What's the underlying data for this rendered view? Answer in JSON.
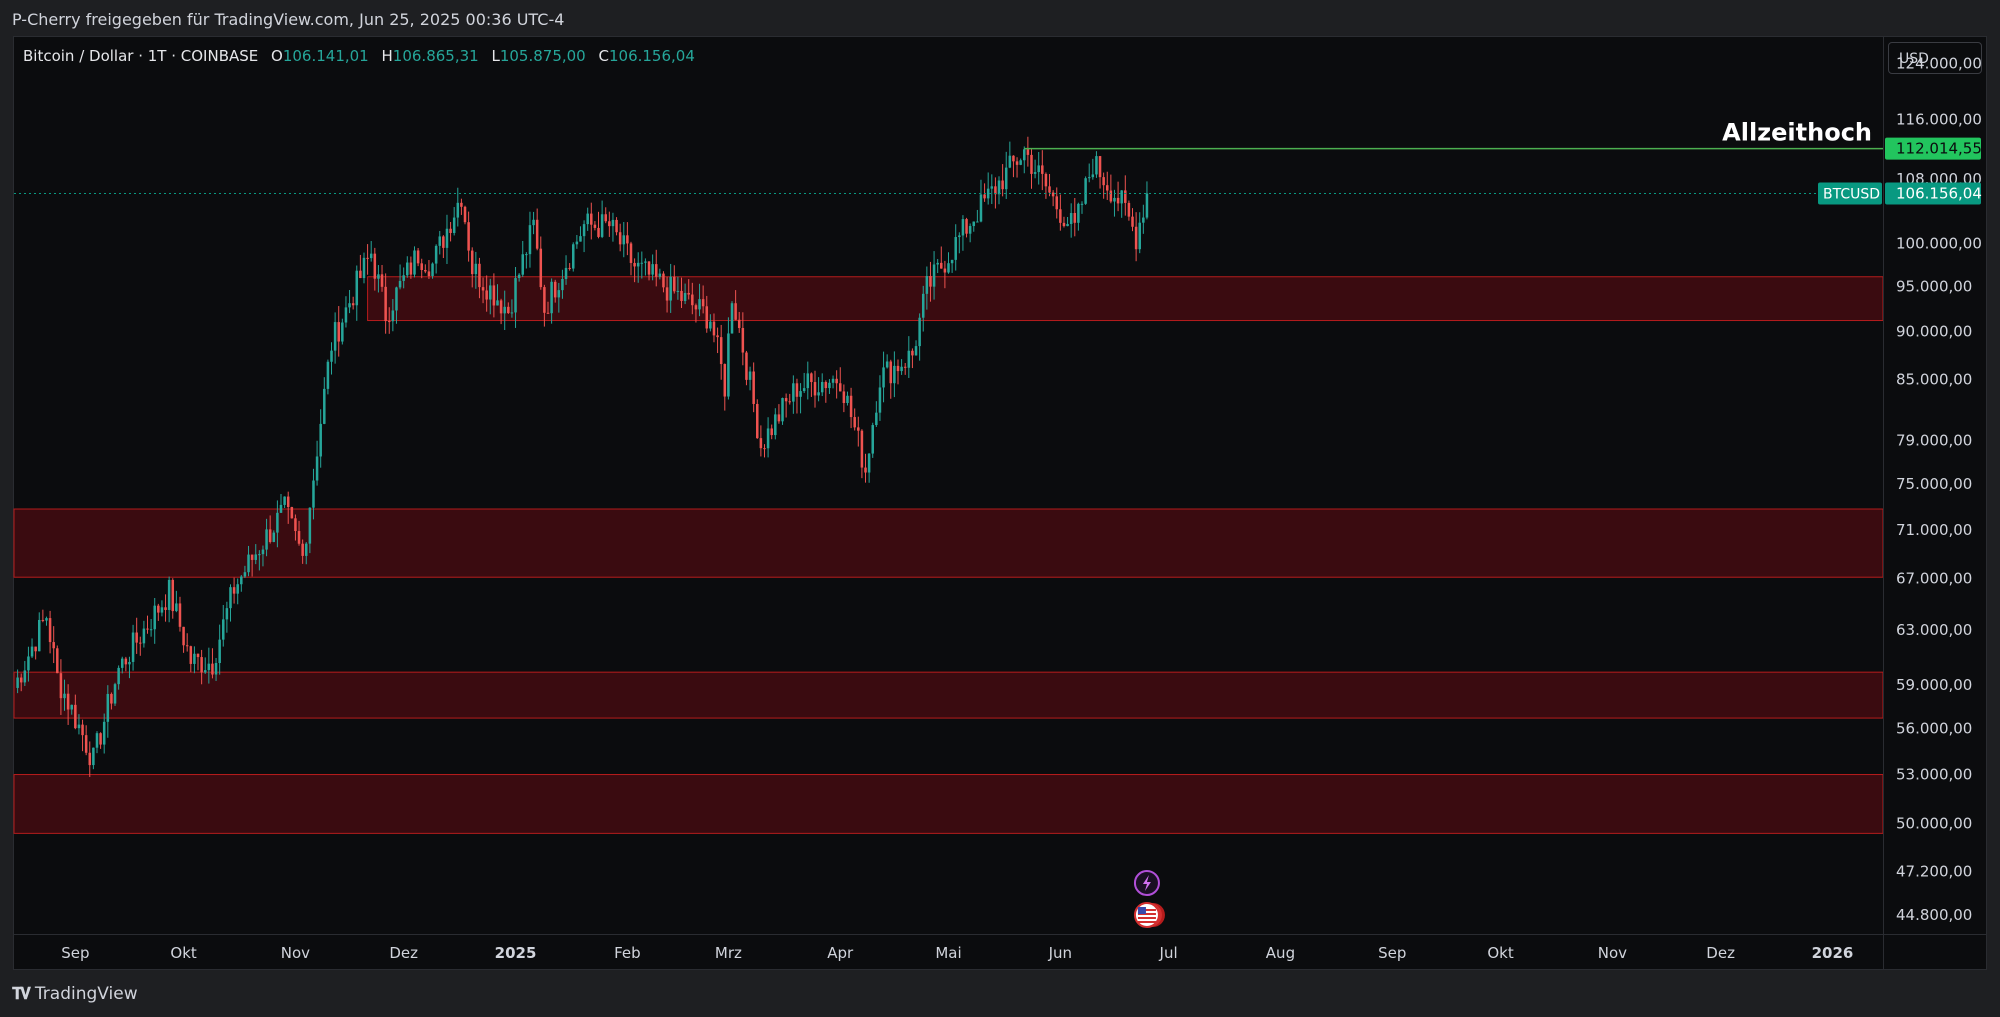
{
  "header": {
    "credit": "P-Cherry freigegeben für TradingView.com, Jun 25, 2025 00:36 UTC-4"
  },
  "legend": {
    "symbol": "Bitcoin / Dollar · 1T · COINBASE",
    "o_label": "O",
    "o_value": "106.141,01",
    "h_label": "H",
    "h_value": "106.865,31",
    "l_label": "L",
    "l_value": "105.875,00",
    "c_label": "C",
    "c_value": "106.156,04"
  },
  "currency_button": "USD",
  "footer": {
    "brand": "TradingView"
  },
  "colors": {
    "up": "#26a69a",
    "down": "#ef5350",
    "zone_fill": "#3a0b10",
    "zone_border": "#b71c1c",
    "ath_line": "#4caf50",
    "ath_badge": "#22c55e",
    "price_badge": "#089981",
    "background": "#0b0c0e"
  },
  "chart_data": {
    "type": "candlestick",
    "title": "",
    "y_scale": "log",
    "ylim": [
      43800,
      128000
    ],
    "xlim": [
      "2024-08-15",
      "2026-01-15"
    ],
    "y_ticks": [
      {
        "value": 124000,
        "label": "124.000,00"
      },
      {
        "value": 116000,
        "label": "116.000,00"
      },
      {
        "value": 108000,
        "label": "108.000,00"
      },
      {
        "value": 100000,
        "label": "100.000,00"
      },
      {
        "value": 95000,
        "label": "95.000,00"
      },
      {
        "value": 90000,
        "label": "90.000,00"
      },
      {
        "value": 85000,
        "label": "85.000,00"
      },
      {
        "value": 79000,
        "label": "79.000,00"
      },
      {
        "value": 75000,
        "label": "75.000,00"
      },
      {
        "value": 71000,
        "label": "71.000,00"
      },
      {
        "value": 67000,
        "label": "67.000,00"
      },
      {
        "value": 63000,
        "label": "63.000,00"
      },
      {
        "value": 59000,
        "label": "59.000,00"
      },
      {
        "value": 56000,
        "label": "56.000,00"
      },
      {
        "value": 53000,
        "label": "53.000,00"
      },
      {
        "value": 50000,
        "label": "50.000,00"
      },
      {
        "value": 47200,
        "label": "47.200,00"
      },
      {
        "value": 44800,
        "label": "44.800,00"
      }
    ],
    "x_ticks": [
      {
        "date": "2024-09-01",
        "label": "Sep",
        "bold": false
      },
      {
        "date": "2024-10-01",
        "label": "Okt",
        "bold": false
      },
      {
        "date": "2024-11-01",
        "label": "Nov",
        "bold": false
      },
      {
        "date": "2024-12-01",
        "label": "Dez",
        "bold": false
      },
      {
        "date": "2025-01-01",
        "label": "2025",
        "bold": true
      },
      {
        "date": "2025-02-01",
        "label": "Feb",
        "bold": false
      },
      {
        "date": "2025-03-01",
        "label": "Mrz",
        "bold": false
      },
      {
        "date": "2025-04-01",
        "label": "Apr",
        "bold": false
      },
      {
        "date": "2025-05-01",
        "label": "Mai",
        "bold": false
      },
      {
        "date": "2025-06-01",
        "label": "Jun",
        "bold": false
      },
      {
        "date": "2025-07-01",
        "label": "Jul",
        "bold": false
      },
      {
        "date": "2025-08-01",
        "label": "Aug",
        "bold": false
      },
      {
        "date": "2025-09-01",
        "label": "Sep",
        "bold": false
      },
      {
        "date": "2025-10-01",
        "label": "Okt",
        "bold": false
      },
      {
        "date": "2025-11-01",
        "label": "Nov",
        "bold": false
      },
      {
        "date": "2025-12-01",
        "label": "Dez",
        "bold": false
      },
      {
        "date": "2026-01-01",
        "label": "2026",
        "bold": true
      }
    ],
    "zones": [
      {
        "low": 91200,
        "high": 96100,
        "start": "2024-11-21",
        "end": "2026-01-15"
      },
      {
        "low": 67100,
        "high": 72800,
        "start": "2024-08-15",
        "end": "2026-01-15"
      },
      {
        "low": 56700,
        "high": 59900,
        "start": "2024-08-15",
        "end": "2026-01-15"
      },
      {
        "low": 49400,
        "high": 53000,
        "start": "2024-08-15",
        "end": "2026-01-15"
      }
    ],
    "ath": {
      "label": "Allzeithoch",
      "value": 112014.55,
      "value_label": "112.014,55",
      "start": "2025-05-22"
    },
    "last_price": {
      "symbol": "BTCUSD",
      "value": 106156.04,
      "value_label": "106.156,04"
    },
    "event_markers": [
      {
        "date": "2025-06-25",
        "icon": "lightning-icon"
      },
      {
        "date": "2025-06-25",
        "icon": "us-flag-icon"
      }
    ],
    "close_keypoints": [
      [
        "2024-08-15",
        58800
      ],
      [
        "2024-08-24",
        64100
      ],
      [
        "2024-08-27",
        59500
      ],
      [
        "2024-09-06",
        53900
      ],
      [
        "2024-09-13",
        60100
      ],
      [
        "2024-09-27",
        65900
      ],
      [
        "2024-10-03",
        60700
      ],
      [
        "2024-10-09",
        60600
      ],
      [
        "2024-10-15",
        66200
      ],
      [
        "2024-10-21",
        69100
      ],
      [
        "2024-10-29",
        72700
      ],
      [
        "2024-11-03",
        68700
      ],
      [
        "2024-11-06",
        75700
      ],
      [
        "2024-11-11",
        88700
      ],
      [
        "2024-11-13",
        90500
      ],
      [
        "2024-11-22",
        98900
      ],
      [
        "2024-11-26",
        91900
      ],
      [
        "2024-12-05",
        98800
      ],
      [
        "2024-12-09",
        97500
      ],
      [
        "2024-12-17",
        106100
      ],
      [
        "2024-12-20",
        97100
      ],
      [
        "2024-12-30",
        92300
      ],
      [
        "2025-01-06",
        102100
      ],
      [
        "2025-01-09",
        92500
      ],
      [
        "2025-01-20",
        102200
      ],
      [
        "2025-01-27",
        102100
      ],
      [
        "2025-02-03",
        97300
      ],
      [
        "2025-02-24",
        91500
      ],
      [
        "2025-02-28",
        84300
      ],
      [
        "2025-03-02",
        94200
      ],
      [
        "2025-03-10",
        78600
      ],
      [
        "2025-03-20",
        84200
      ],
      [
        "2025-04-01",
        85200
      ],
      [
        "2025-04-08",
        76300
      ],
      [
        "2025-04-12",
        85300
      ],
      [
        "2025-04-21",
        87500
      ],
      [
        "2025-04-25",
        94700
      ],
      [
        "2025-05-08",
        103300
      ],
      [
        "2025-05-22",
        111700
      ],
      [
        "2025-05-31",
        104600
      ],
      [
        "2025-06-05",
        101600
      ],
      [
        "2025-06-10",
        110200
      ],
      [
        "2025-06-18",
        104800
      ],
      [
        "2025-06-22",
        100900
      ],
      [
        "2025-06-25",
        106156
      ]
    ]
  }
}
